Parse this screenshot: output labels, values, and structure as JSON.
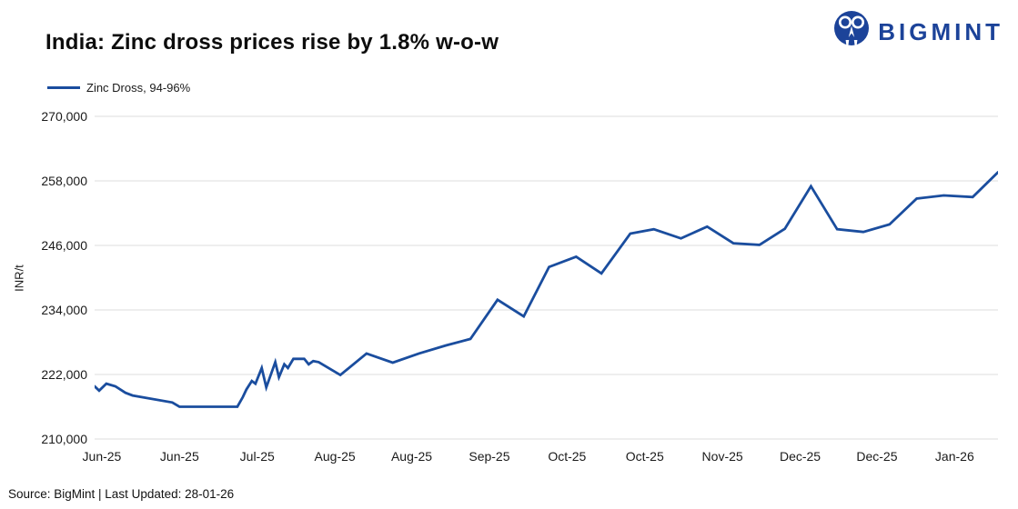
{
  "header": {
    "title": "India: Zinc dross prices rise by 1.8% w-o-w",
    "logo_text": "BIGMINT"
  },
  "legend": {
    "label": "Zinc Dross, 94-96%"
  },
  "footer": {
    "source_note": "Source: BigMint | Last Updated: 28-01-26"
  },
  "colors": {
    "line": "#1a4d9e",
    "logo": "#1c4399",
    "gridline": "#dcdcdc",
    "axis_text": "#1a1a1a"
  },
  "chart_data": {
    "type": "line",
    "title": "India: Zinc dross prices rise by 1.8% w-o-w",
    "xlabel": "",
    "ylabel": "INR/t",
    "ylim": [
      210000,
      270000
    ],
    "grid": "horizontal-only",
    "legend_position": "top-left",
    "y_ticks": [
      270000,
      258000,
      246000,
      234000,
      222000,
      210000
    ],
    "y_tick_labels": [
      "270,000",
      "258,000",
      "246,000",
      "234,000",
      "222,000",
      "210,000"
    ],
    "x_tick_labels": [
      "Jun-25",
      "Jun-25",
      "Jul-25",
      "Aug-25",
      "Aug-25",
      "Sep-25",
      "Oct-25",
      "Oct-25",
      "Nov-25",
      "Dec-25",
      "Dec-25",
      "Jan-26"
    ],
    "x_tick_positions": [
      0.008,
      0.094,
      0.18,
      0.266,
      0.351,
      0.437,
      0.523,
      0.609,
      0.695,
      0.781,
      0.866,
      0.952
    ],
    "series": [
      {
        "name": "Zinc Dross, 94-96%",
        "color": "#1a4d9e",
        "x_unit": "fraction-of-plot-width",
        "y_unit": "INR/t",
        "points": [
          [
            0.0,
            219800
          ],
          [
            0.005,
            219000
          ],
          [
            0.013,
            220300
          ],
          [
            0.023,
            219800
          ],
          [
            0.034,
            218600
          ],
          [
            0.042,
            218100
          ],
          [
            0.086,
            216800
          ],
          [
            0.094,
            216000
          ],
          [
            0.158,
            216000
          ],
          [
            0.164,
            217800
          ],
          [
            0.168,
            219200
          ],
          [
            0.174,
            220800
          ],
          [
            0.178,
            220300
          ],
          [
            0.185,
            223200
          ],
          [
            0.19,
            219600
          ],
          [
            0.2,
            224300
          ],
          [
            0.204,
            221500
          ],
          [
            0.21,
            223900
          ],
          [
            0.214,
            223200
          ],
          [
            0.22,
            224900
          ],
          [
            0.232,
            224900
          ],
          [
            0.237,
            223900
          ],
          [
            0.242,
            224500
          ],
          [
            0.248,
            224300
          ],
          [
            0.272,
            221900
          ],
          [
            0.301,
            225900
          ],
          [
            0.33,
            224200
          ],
          [
            0.359,
            225900
          ],
          [
            0.389,
            227400
          ],
          [
            0.416,
            228600
          ],
          [
            0.446,
            235900
          ],
          [
            0.475,
            232800
          ],
          [
            0.503,
            242000
          ],
          [
            0.533,
            243900
          ],
          [
            0.561,
            240800
          ],
          [
            0.593,
            248200
          ],
          [
            0.619,
            249000
          ],
          [
            0.649,
            247300
          ],
          [
            0.678,
            249500
          ],
          [
            0.707,
            246400
          ],
          [
            0.736,
            246100
          ],
          [
            0.764,
            249100
          ],
          [
            0.793,
            257000
          ],
          [
            0.822,
            249000
          ],
          [
            0.851,
            248500
          ],
          [
            0.88,
            249900
          ],
          [
            0.91,
            254700
          ],
          [
            0.94,
            255300
          ],
          [
            0.972,
            255000
          ],
          [
            1.0,
            259600
          ]
        ]
      }
    ]
  }
}
